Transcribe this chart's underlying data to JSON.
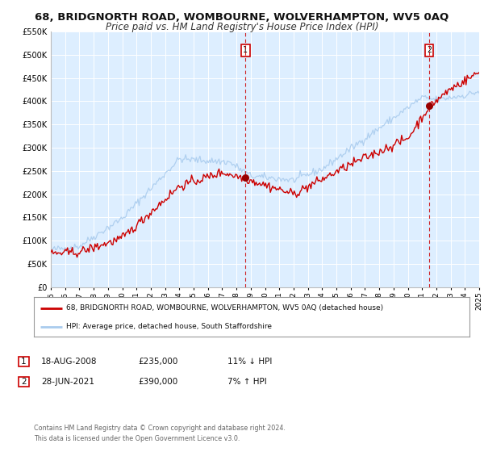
{
  "title": "68, BRIDGNORTH ROAD, WOMBOURNE, WOLVERHAMPTON, WV5 0AQ",
  "subtitle": "Price paid vs. HM Land Registry's House Price Index (HPI)",
  "title_fontsize": 9.5,
  "subtitle_fontsize": 8.5,
  "bg_color": "#ffffff",
  "plot_bg_color": "#ddeeff",
  "grid_color": "#ffffff",
  "red_line_color": "#cc0000",
  "blue_line_color": "#aaccee",
  "sale1_date_num": 2008.63,
  "sale1_label": "1",
  "sale1_price": 235000,
  "sale1_date_str": "18-AUG-2008",
  "sale1_hpi_pct": "11% ↓ HPI",
  "sale2_date_num": 2021.49,
  "sale2_label": "2",
  "sale2_price": 390000,
  "sale2_date_str": "28-JUN-2021",
  "sale2_hpi_pct": "7% ↑ HPI",
  "xmin": 1995,
  "xmax": 2025,
  "ymin": 0,
  "ymax": 550000,
  "yticks": [
    0,
    50000,
    100000,
    150000,
    200000,
    250000,
    300000,
    350000,
    400000,
    450000,
    500000,
    550000
  ],
  "ytick_labels": [
    "£0",
    "£50K",
    "£100K",
    "£150K",
    "£200K",
    "£250K",
    "£300K",
    "£350K",
    "£400K",
    "£450K",
    "£500K",
    "£550K"
  ],
  "legend_line1": "68, BRIDGNORTH ROAD, WOMBOURNE, WOLVERHAMPTON, WV5 0AQ (detached house)",
  "legend_line2": "HPI: Average price, detached house, South Staffordshire",
  "footer1": "Contains HM Land Registry data © Crown copyright and database right 2024.",
  "footer2": "This data is licensed under the Open Government Licence v3.0."
}
